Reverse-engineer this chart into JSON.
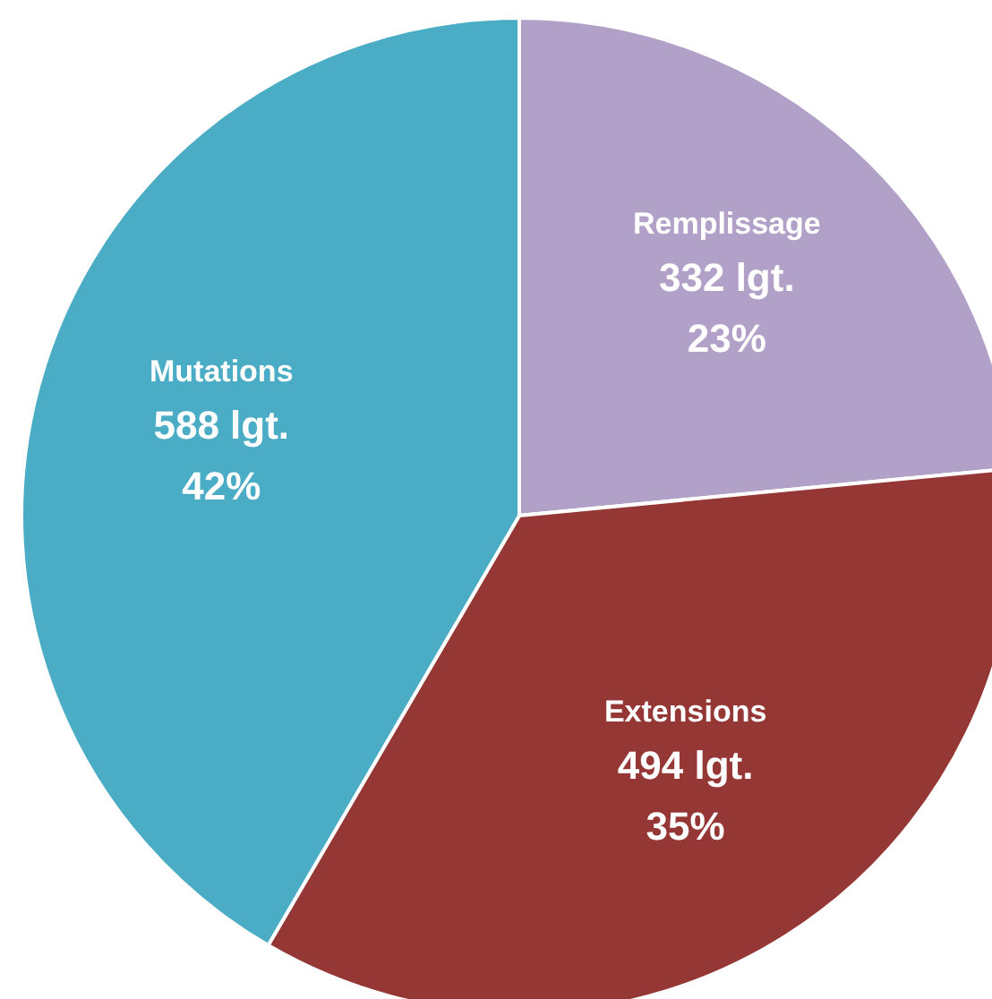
{
  "chart_data": {
    "type": "pie",
    "categories": [
      "Remplissage",
      "Extensions",
      "Mutations"
    ],
    "values": [
      332,
      494,
      588
    ],
    "colors": [
      "#b1a0c7",
      "#953735",
      "#4bacc6"
    ],
    "value_labels": [
      "332 lgt.\n23%",
      "494 lgt.\n35%",
      "588 lgt.\n42%"
    ]
  }
}
